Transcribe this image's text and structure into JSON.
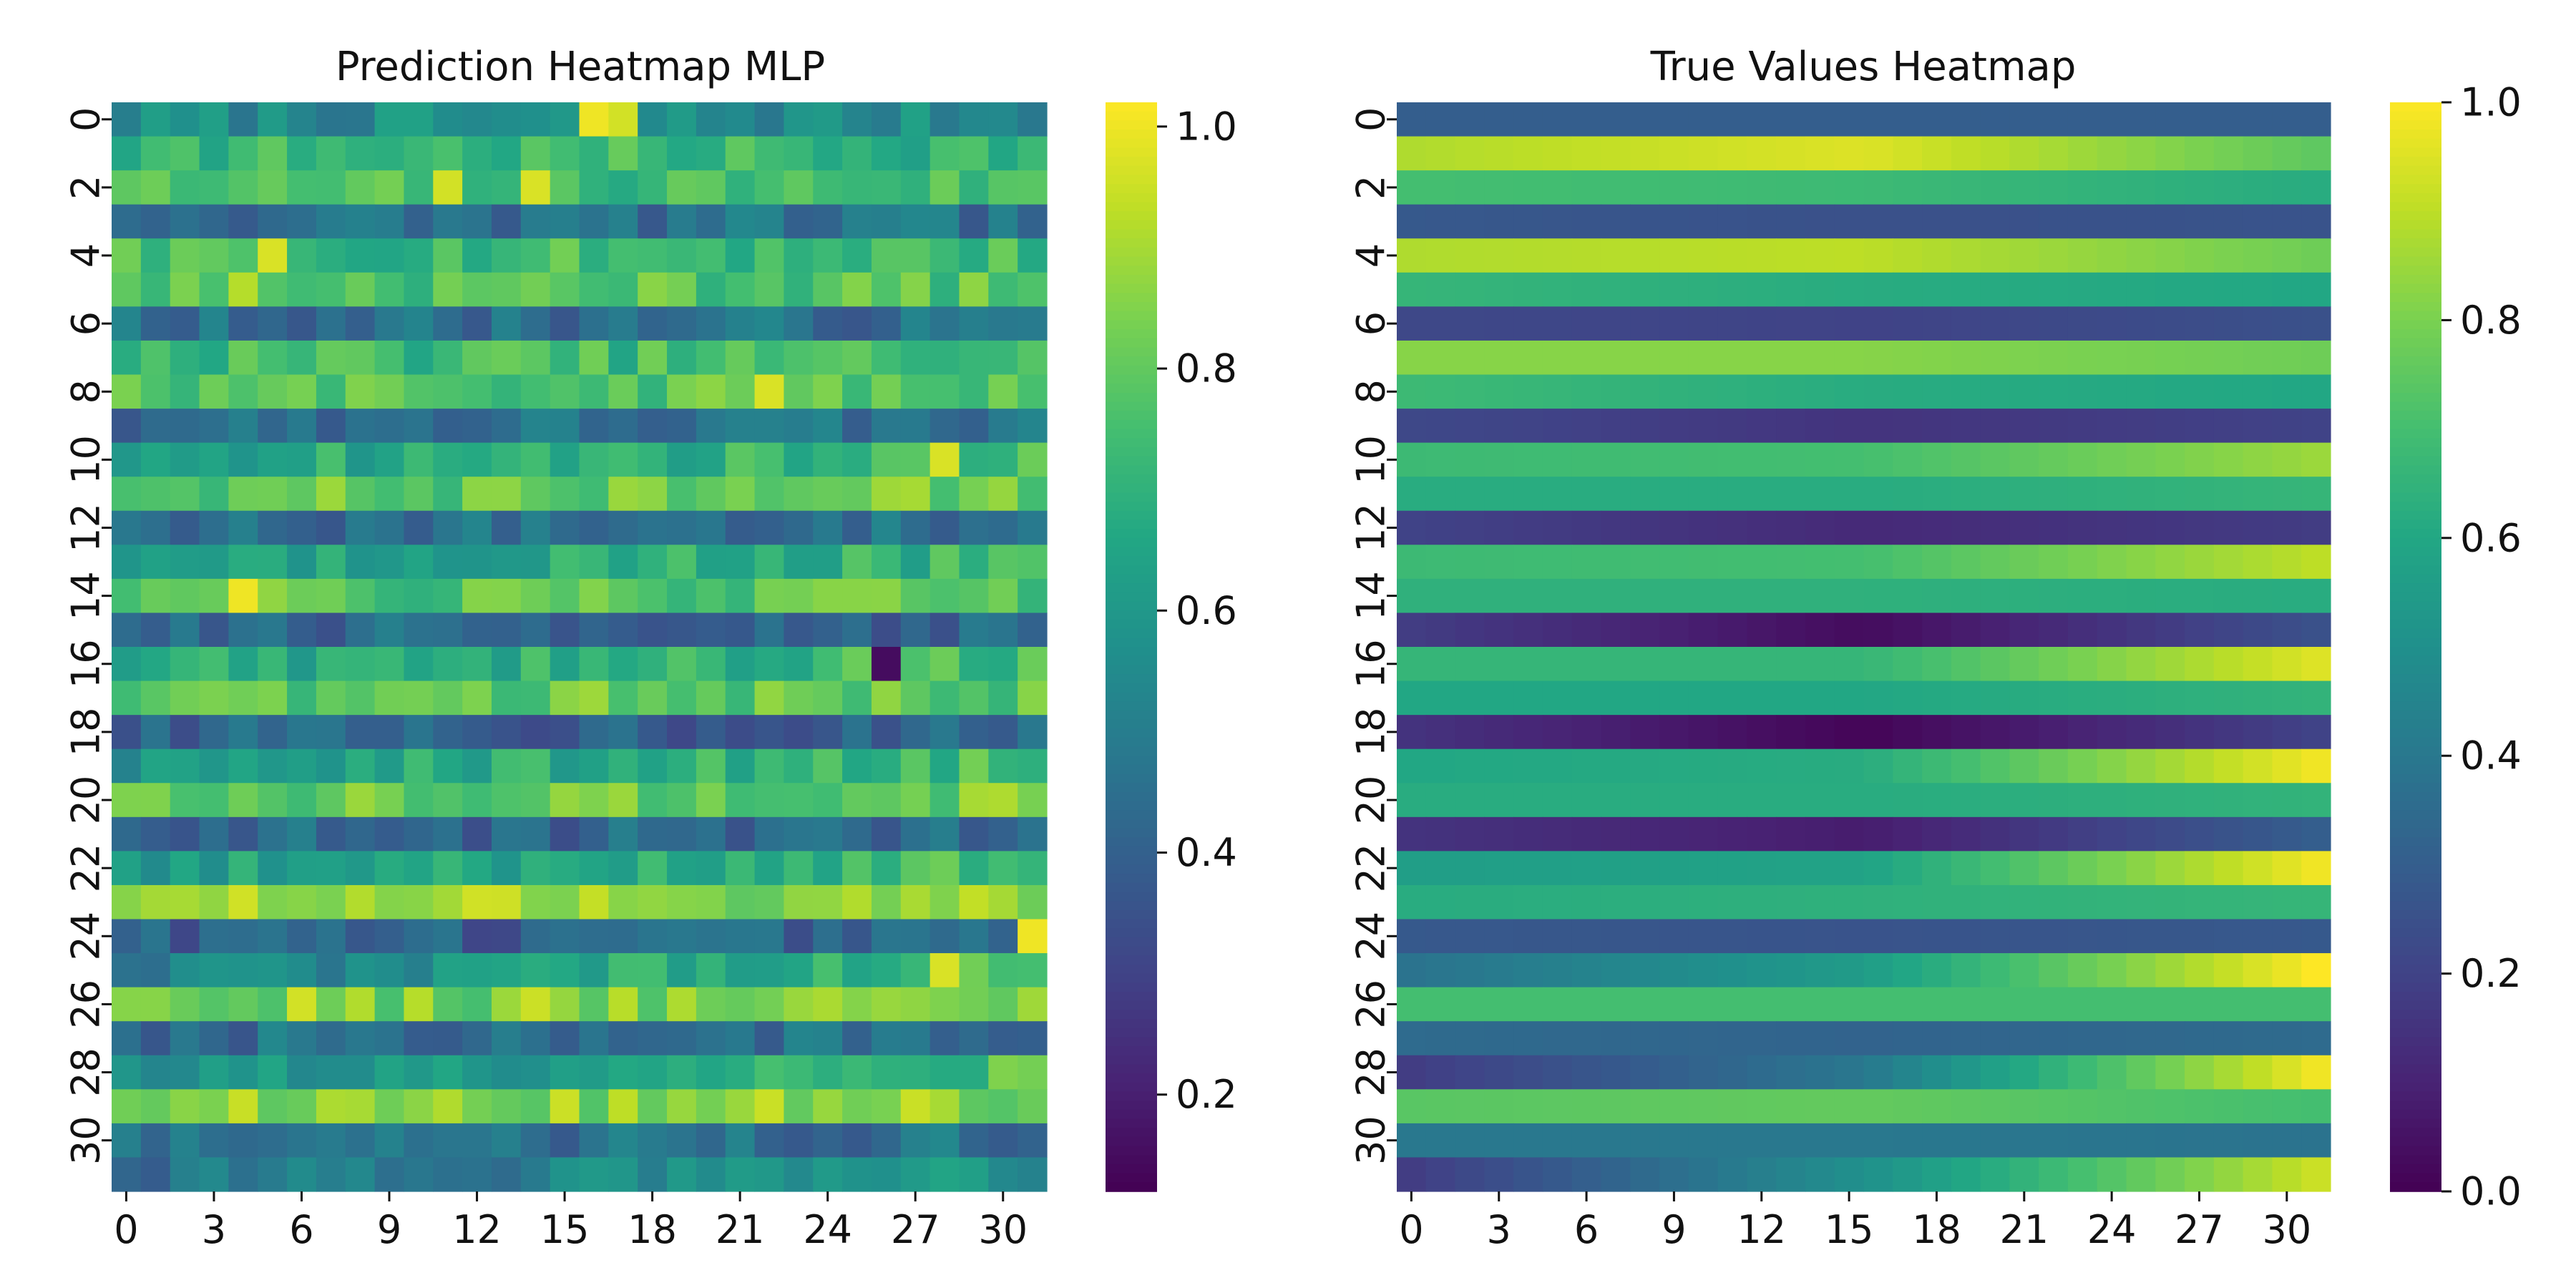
{
  "chart_data": [
    {
      "type": "heatmap",
      "title": "Prediction Heatmap MLP",
      "xlabel": "",
      "ylabel": "",
      "x_tick_labels": [
        "0",
        "3",
        "6",
        "9",
        "12",
        "15",
        "18",
        "21",
        "24",
        "27",
        "30"
      ],
      "y_tick_labels": [
        "0",
        "2",
        "4",
        "6",
        "8",
        "10",
        "12",
        "14",
        "16",
        "18",
        "20",
        "22",
        "24",
        "26",
        "28",
        "30"
      ],
      "n_cols": 32,
      "colormap": "viridis",
      "colorbar": {
        "min": 0.12,
        "max": 1.02,
        "tick_labels": [
          "0.2",
          "0.4",
          "0.6",
          "0.8",
          "1.0"
        ],
        "tick_values": [
          0.2,
          0.4,
          0.6,
          0.8,
          1.0
        ]
      },
      "row_means": [
        0.55,
        0.72,
        0.75,
        0.45,
        0.74,
        0.78,
        0.45,
        0.74,
        0.78,
        0.45,
        0.68,
        0.8,
        0.45,
        0.66,
        0.78,
        0.42,
        0.68,
        0.8,
        0.4,
        0.65,
        0.82,
        0.42,
        0.65,
        0.88,
        0.4,
        0.58,
        0.84,
        0.45,
        0.62,
        0.86,
        0.45,
        0.5
      ],
      "row_trends": [
        0,
        0,
        0,
        0,
        0,
        0,
        0,
        0,
        0,
        0,
        0.08,
        0,
        0,
        0.08,
        0,
        0,
        0.1,
        0,
        0,
        0.15,
        0,
        0,
        0.15,
        0,
        0,
        0.3,
        0,
        0,
        0.22,
        0,
        0,
        0.15
      ],
      "highlights": [
        [
          0,
          17,
          0.96
        ],
        [
          0,
          16,
          1.0
        ],
        [
          2,
          14,
          0.97
        ],
        [
          4,
          5,
          0.97
        ],
        [
          5,
          4,
          0.92
        ],
        [
          14,
          4,
          1.0
        ],
        [
          24,
          31,
          1.0
        ],
        [
          26,
          14,
          0.95
        ],
        [
          26,
          6,
          0.96
        ],
        [
          8,
          22,
          0.97
        ],
        [
          10,
          28,
          0.97
        ],
        [
          25,
          28,
          0.97
        ],
        [
          16,
          26,
          0.15
        ],
        [
          2,
          11,
          0.96
        ],
        [
          11,
          27,
          0.9
        ]
      ]
    },
    {
      "type": "heatmap",
      "title": "True Values Heatmap",
      "xlabel": "",
      "ylabel": "",
      "x_tick_labels": [
        "0",
        "3",
        "6",
        "9",
        "12",
        "15",
        "18",
        "21",
        "24",
        "27",
        "30"
      ],
      "y_tick_labels": [
        "0",
        "2",
        "4",
        "6",
        "8",
        "10",
        "12",
        "14",
        "16",
        "18",
        "20",
        "22",
        "24",
        "26",
        "28",
        "30"
      ],
      "n_cols": 32,
      "colormap": "viridis",
      "colorbar": {
        "min": 0.0,
        "max": 1.0,
        "tick_labels": [
          "0.0",
          "0.2",
          "0.4",
          "0.6",
          "0.8",
          "1.0"
        ],
        "tick_values": [
          0.0,
          0.2,
          0.4,
          0.6,
          0.8,
          1.0
        ]
      },
      "rows": [
        {
          "start": 0.3,
          "mid": 0.3,
          "end": 0.3
        },
        {
          "start": 0.88,
          "mid": 0.95,
          "end": 0.75
        },
        {
          "start": 0.7,
          "mid": 0.68,
          "end": 0.62
        },
        {
          "start": 0.28,
          "mid": 0.25,
          "end": 0.26
        },
        {
          "start": 0.88,
          "mid": 0.9,
          "end": 0.78
        },
        {
          "start": 0.66,
          "mid": 0.62,
          "end": 0.6
        },
        {
          "start": 0.22,
          "mid": 0.2,
          "end": 0.25
        },
        {
          "start": 0.82,
          "mid": 0.82,
          "end": 0.78
        },
        {
          "start": 0.68,
          "mid": 0.62,
          "end": 0.6
        },
        {
          "start": 0.22,
          "mid": 0.15,
          "end": 0.2
        },
        {
          "start": 0.68,
          "mid": 0.7,
          "end": 0.85
        },
        {
          "start": 0.62,
          "mid": 0.62,
          "end": 0.66
        },
        {
          "start": 0.2,
          "mid": 0.12,
          "end": 0.18
        },
        {
          "start": 0.68,
          "mid": 0.7,
          "end": 0.9
        },
        {
          "start": 0.64,
          "mid": 0.64,
          "end": 0.62
        },
        {
          "start": 0.18,
          "mid": 0.03,
          "end": 0.25
        },
        {
          "start": 0.66,
          "mid": 0.66,
          "end": 0.95
        },
        {
          "start": 0.6,
          "mid": 0.6,
          "end": 0.65
        },
        {
          "start": 0.15,
          "mid": 0.01,
          "end": 0.2
        },
        {
          "start": 0.6,
          "mid": 0.62,
          "end": 0.98
        },
        {
          "start": 0.62,
          "mid": 0.62,
          "end": 0.65
        },
        {
          "start": 0.15,
          "mid": 0.08,
          "end": 0.3
        },
        {
          "start": 0.56,
          "mid": 0.58,
          "end": 0.98
        },
        {
          "start": 0.62,
          "mid": 0.64,
          "end": 0.66
        },
        {
          "start": 0.28,
          "mid": 0.26,
          "end": 0.28
        },
        {
          "start": 0.38,
          "mid": 0.55,
          "end": 1.0
        },
        {
          "start": 0.7,
          "mid": 0.7,
          "end": 0.7
        },
        {
          "start": 0.35,
          "mid": 0.32,
          "end": 0.35
        },
        {
          "start": 0.18,
          "mid": 0.4,
          "end": 0.98
        },
        {
          "start": 0.74,
          "mid": 0.76,
          "end": 0.7
        },
        {
          "start": 0.4,
          "mid": 0.4,
          "end": 0.38
        },
        {
          "start": 0.18,
          "mid": 0.5,
          "end": 0.92
        }
      ]
    }
  ]
}
